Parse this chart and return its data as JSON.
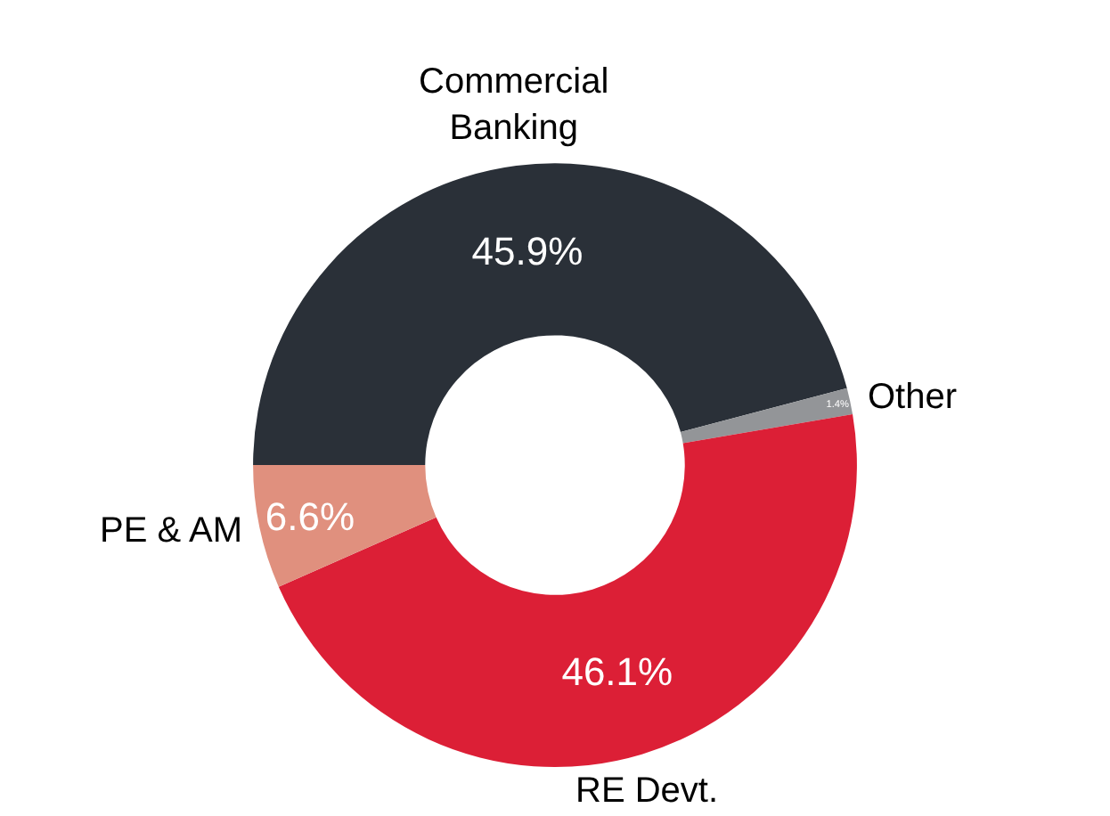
{
  "chart_data": {
    "type": "donut",
    "categories": [
      "Commercial Banking",
      "Other",
      "RE Devt.",
      "PE & AM"
    ],
    "values": [
      45.9,
      1.4,
      46.1,
      6.6
    ],
    "colors": [
      "#2a3038",
      "#939598",
      "#dc1f36",
      "#e0907e"
    ],
    "value_labels": [
      "45.9%",
      "1.4%",
      "46.1%",
      "6.6%"
    ],
    "legend": false
  }
}
